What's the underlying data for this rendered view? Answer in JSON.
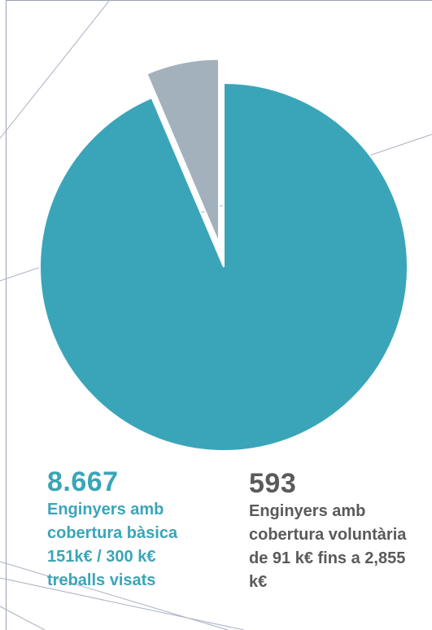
{
  "chart_data": {
    "type": "pie",
    "slices": [
      {
        "value": 8667,
        "value_label": "8.667",
        "label": "Enginyers amb cobertura bàsica 151k€ / 300 k€ treballs visats",
        "color": "#3aa5b8",
        "exploded": false
      },
      {
        "value": 593,
        "value_label": "593",
        "label": "Enginyers amb cobertura voluntària de 91 k€ fins a 2,855 k€",
        "color": "#a3b1bc",
        "exploded": true
      }
    ],
    "start": "top",
    "direction": "clockwise",
    "legend": "bottom"
  },
  "legend_text_colors": [
    "#3aa5b8",
    "#5a5a5a"
  ]
}
